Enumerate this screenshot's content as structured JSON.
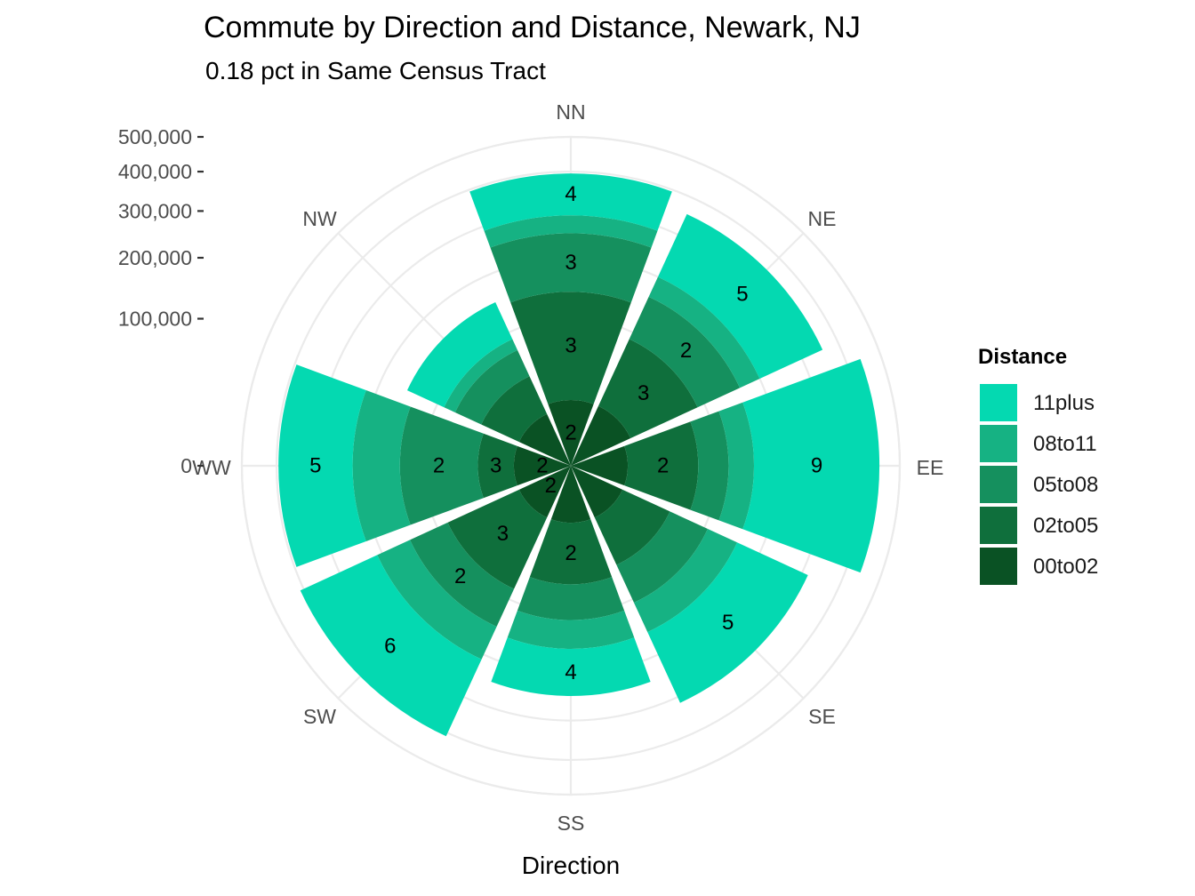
{
  "chart_data": {
    "type": "polar-stacked-bar",
    "title": "Commute by Direction and Distance, Newark, NJ",
    "subtitle": "0.18 pct in Same Census Tract",
    "xlabel": "Direction",
    "ylabel": "",
    "ylim": [
      0,
      500000
    ],
    "y_ticks": [
      0,
      100000,
      200000,
      300000,
      400000,
      500000
    ],
    "y_tick_labels": [
      "0",
      "100,000",
      "200,000",
      "300,000",
      "400,000",
      "500,000"
    ],
    "grid": true,
    "legend": {
      "title": "Distance",
      "placement": "right",
      "entries": [
        "11plus",
        "08to11",
        "05to08",
        "02to05",
        "00to02"
      ]
    },
    "categories": [
      "NN",
      "NE",
      "EE",
      "SE",
      "SS",
      "SW",
      "WW",
      "NW"
    ],
    "series": [
      {
        "name": "00to02",
        "color": "#0a5224",
        "values": [
          20000,
          20000,
          15000,
          15000,
          15000,
          15000,
          15000,
          15000
        ]
      },
      {
        "name": "02to05",
        "color": "#0f6f3c",
        "values": [
          120000,
          70000,
          60000,
          40000,
          50000,
          70000,
          25000,
          30000
        ]
      },
      {
        "name": "05to08",
        "color": "#15905e",
        "values": [
          110000,
          70000,
          40000,
          50000,
          45000,
          60000,
          95000,
          30000
        ]
      },
      {
        "name": "08to11",
        "color": "#16b283",
        "values": [
          40000,
          40000,
          40000,
          50000,
          45000,
          65000,
          85000,
          15000
        ]
      },
      {
        "name": "11plus",
        "color": "#04d9b1",
        "values": [
          105000,
          155000,
          285000,
          160000,
          90000,
          200000,
          175000,
          60000
        ]
      }
    ],
    "bar_labels": [
      {
        "category": "NN",
        "series": "00to02",
        "text": "2"
      },
      {
        "category": "NN",
        "series": "02to05",
        "text": "3"
      },
      {
        "category": "NN",
        "series": "05to08",
        "text": "3"
      },
      {
        "category": "NN",
        "series": "11plus",
        "text": "4"
      },
      {
        "category": "NE",
        "series": "02to05",
        "text": "3"
      },
      {
        "category": "NE",
        "series": "05to08",
        "text": "2"
      },
      {
        "category": "NE",
        "series": "11plus",
        "text": "5"
      },
      {
        "category": "EE",
        "series": "02to05",
        "text": "2"
      },
      {
        "category": "EE",
        "series": "11plus",
        "text": "9"
      },
      {
        "category": "SE",
        "series": "11plus",
        "text": "5"
      },
      {
        "category": "SS",
        "series": "02to05",
        "text": "2"
      },
      {
        "category": "SS",
        "series": "11plus",
        "text": "4"
      },
      {
        "category": "SW",
        "series": "00to02",
        "text": "2"
      },
      {
        "category": "SW",
        "series": "02to05",
        "text": "3"
      },
      {
        "category": "SW",
        "series": "05to08",
        "text": "2"
      },
      {
        "category": "SW",
        "series": "11plus",
        "text": "6"
      },
      {
        "category": "WW",
        "series": "00to02",
        "text": "2"
      },
      {
        "category": "WW",
        "series": "02to05",
        "text": "3"
      },
      {
        "category": "WW",
        "series": "05to08",
        "text": "2"
      },
      {
        "category": "WW",
        "series": "11plus",
        "text": "5"
      }
    ]
  }
}
